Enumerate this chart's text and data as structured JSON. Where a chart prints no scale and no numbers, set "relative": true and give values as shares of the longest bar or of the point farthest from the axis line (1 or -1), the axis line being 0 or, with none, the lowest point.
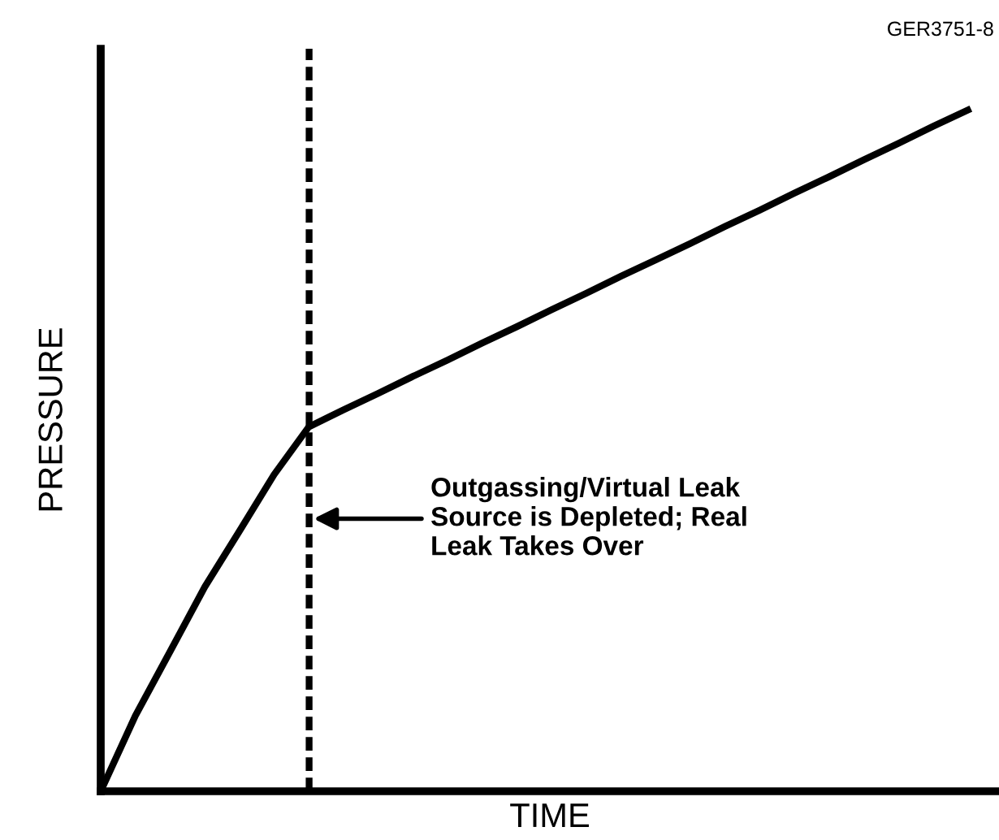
{
  "chart_data": {
    "type": "line",
    "relative": true,
    "xlabel": "TIME",
    "ylabel": "PRESSURE",
    "categories": [
      null,
      null,
      null,
      null,
      null,
      null,
      null,
      null,
      null,
      null,
      null,
      null,
      null,
      null,
      null,
      null,
      null,
      null,
      null,
      null,
      null,
      null,
      null,
      null,
      null,
      null
    ],
    "series": [
      {
        "color": "#000000",
        "values": [
          0,
          0.111,
          0.205,
          0.3,
          0.382,
          0.465,
          0.535,
          0.56,
          0.584,
          0.609,
          0.633,
          0.658,
          0.682,
          0.707,
          0.731,
          0.756,
          0.78,
          0.804,
          0.829,
          0.853,
          0.878,
          0.902,
          0.927,
          0.951,
          0.976,
          1.0
        ]
      }
    ],
    "annotations": [
      "Outgassing/Virtual Leak\nSource is Depleted; Real\nLeak Takes Over",
      "GER3751-8"
    ],
    "legend": false,
    "marker": "none",
    "line_style": "solid"
  }
}
